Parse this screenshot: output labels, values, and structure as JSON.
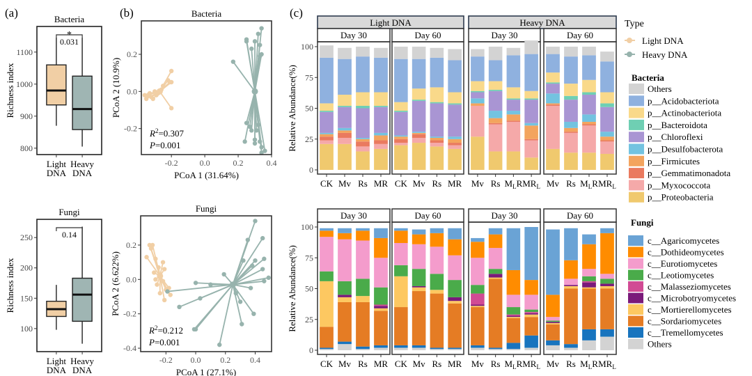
{
  "panel_labels": {
    "a": "(a)",
    "b": "(b)",
    "c": "(c)"
  },
  "chart_data": [
    {
      "id": "a-bacteria",
      "type": "boxplot",
      "title": "Bacteria",
      "ylabel": "Richness index",
      "ylim": [
        780,
        1180
      ],
      "yticks": [
        800,
        900,
        1000,
        1100
      ],
      "categories": [
        "Light DNA",
        "Heavy DNA"
      ],
      "category_lines": [
        [
          "Light",
          "DNA"
        ],
        [
          "Heavy",
          "DNA"
        ]
      ],
      "boxes": [
        {
          "min": 870,
          "q1": 935,
          "median": 980,
          "q3": 1060,
          "max": 1145
        },
        {
          "min": 805,
          "q1": 858,
          "median": 922,
          "q3": 1025,
          "max": 1145
        }
      ],
      "significance": {
        "p_label": "0.031",
        "star": "*"
      }
    },
    {
      "id": "a-fungi",
      "type": "boxplot",
      "title": "Fungi",
      "ylabel": "Richness index",
      "ylim": [
        62,
        280
      ],
      "yticks": [
        100,
        150,
        200,
        250
      ],
      "categories": [
        "Light DNA",
        "Heavy DNA"
      ],
      "category_lines": [
        [
          "Light",
          "DNA"
        ],
        [
          "Heavy",
          "DNA"
        ]
      ],
      "boxes": [
        {
          "min": 98,
          "q1": 120,
          "median": 132,
          "q3": 145,
          "max": 172
        },
        {
          "min": 75,
          "q1": 112,
          "median": 156,
          "q3": 183,
          "max": 268
        }
      ],
      "significance": {
        "p_label": "0.14",
        "star": ""
      }
    },
    {
      "id": "b-bacteria",
      "type": "scatter",
      "title": "Bacteria",
      "xlabel": "PCoA 1 (31.64%)",
      "ylabel": "PCoA 2 (10.9%)",
      "xlim": [
        -0.38,
        0.4
      ],
      "ylim": [
        -0.34,
        0.38
      ],
      "xticks": [
        -0.2,
        0.0,
        0.2,
        0.4
      ],
      "xtick_labels": [
        "-0.2",
        "0.0",
        "0.2",
        "0.4"
      ],
      "yticks": [
        -0.2,
        0.0,
        0.2
      ],
      "ytick_labels": [
        "-0.2",
        "0.0",
        "0.2"
      ],
      "annotation": {
        "r2": "=0.307",
        "p": "=0.001"
      },
      "series": [
        {
          "name": "Light DNA",
          "color": "#f1cfa5",
          "centroid": [
            -0.27,
            0.0
          ],
          "points": [
            [
              -0.2,
              0.11
            ],
            [
              -0.22,
              0.06
            ],
            [
              -0.21,
              0.05
            ],
            [
              -0.2,
              0.05
            ],
            [
              -0.25,
              0.03
            ],
            [
              -0.3,
              0.0
            ],
            [
              -0.33,
              -0.01
            ],
            [
              -0.34,
              -0.02
            ],
            [
              -0.32,
              -0.03
            ],
            [
              -0.29,
              -0.02
            ],
            [
              -0.36,
              -0.02
            ],
            [
              -0.35,
              -0.04
            ],
            [
              -0.31,
              -0.04
            ],
            [
              -0.2,
              -0.09
            ],
            [
              -0.26,
              0.01
            ],
            [
              -0.28,
              -0.01
            ]
          ]
        },
        {
          "name": "Heavy DNA",
          "color": "#97b3ad",
          "centroid": [
            0.3,
            0.0
          ],
          "points": [
            [
              0.17,
              0.16
            ],
            [
              0.25,
              0.28
            ],
            [
              0.25,
              0.27
            ],
            [
              0.3,
              0.27
            ],
            [
              0.32,
              0.31
            ],
            [
              0.34,
              0.34
            ],
            [
              0.33,
              0.25
            ],
            [
              0.28,
              0.23
            ],
            [
              0.34,
              0.2
            ],
            [
              0.33,
              0.19
            ],
            [
              0.25,
              -0.17
            ],
            [
              0.27,
              -0.19
            ],
            [
              0.28,
              -0.21
            ],
            [
              0.31,
              -0.21
            ],
            [
              0.32,
              -0.18
            ],
            [
              0.24,
              -0.27
            ],
            [
              0.3,
              -0.26
            ],
            [
              0.3,
              -0.28
            ],
            [
              0.33,
              -0.27
            ],
            [
              0.34,
              -0.3
            ],
            [
              0.36,
              -0.32
            ],
            [
              0.34,
              -0.33
            ]
          ]
        }
      ]
    },
    {
      "id": "b-fungi",
      "type": "scatter",
      "title": "Fungi",
      "xlabel": "PCoA 1 (27.1%)",
      "ylabel": "PCoA 2 (6.622%)",
      "xlim": [
        -0.37,
        0.51
      ],
      "ylim": [
        -0.42,
        0.37
      ],
      "xticks": [
        -0.2,
        0.0,
        0.2,
        0.4
      ],
      "xtick_labels": [
        "-0.2",
        "0.0",
        "0.2",
        "0.4"
      ],
      "yticks": [
        -0.4,
        -0.2,
        0.0,
        0.2
      ],
      "ytick_labels": [
        "-0.4",
        "-0.2",
        "0.0",
        "0.2"
      ],
      "annotation": {
        "r2": "=0.212",
        "p": "=0.001"
      },
      "series": [
        {
          "name": "Light DNA",
          "color": "#f1cfa5",
          "centroid": [
            -0.24,
            0.02
          ],
          "points": [
            [
              -0.31,
              0.2
            ],
            [
              -0.29,
              0.2
            ],
            [
              -0.3,
              0.18
            ],
            [
              -0.33,
              0.13
            ],
            [
              -0.27,
              0.12
            ],
            [
              -0.22,
              0.1
            ],
            [
              -0.25,
              0.07
            ],
            [
              -0.21,
              0.06
            ],
            [
              -0.28,
              0.04
            ],
            [
              -0.24,
              0.02
            ],
            [
              -0.27,
              0.0
            ],
            [
              -0.22,
              -0.01
            ],
            [
              -0.26,
              -0.03
            ],
            [
              -0.18,
              -0.05
            ],
            [
              -0.2,
              -0.06
            ],
            [
              -0.17,
              -0.09
            ],
            [
              -0.21,
              -0.12
            ],
            [
              -0.24,
              -0.08
            ]
          ]
        },
        {
          "name": "Heavy DNA",
          "color": "#97b3ad",
          "centroid": [
            0.25,
            -0.03
          ],
          "points": [
            [
              0.4,
              0.34
            ],
            [
              0.35,
              0.23
            ],
            [
              0.45,
              0.24
            ],
            [
              0.32,
              0.11
            ],
            [
              0.4,
              0.11
            ],
            [
              0.46,
              0.12
            ],
            [
              0.38,
              0.08
            ],
            [
              0.45,
              0.06
            ],
            [
              0.49,
              0.01
            ],
            [
              0.46,
              -0.01
            ],
            [
              0.37,
              -0.05
            ],
            [
              0.19,
              0.03
            ],
            [
              0.27,
              -0.08
            ],
            [
              0.3,
              -0.13
            ],
            [
              0.39,
              -0.2
            ],
            [
              0.31,
              -0.26
            ],
            [
              0.16,
              -0.38
            ],
            [
              0.0,
              -0.29
            ],
            [
              -0.01,
              -0.29
            ],
            [
              0.03,
              -0.11
            ],
            [
              -0.11,
              -0.16
            ],
            [
              -0.19,
              -0.07
            ],
            [
              0.0,
              -0.02
            ],
            [
              0.1,
              -0.03
            ]
          ]
        }
      ]
    },
    {
      "id": "c-bacteria",
      "type": "stacked_bar",
      "ylabel": "Relative Abundance(%)",
      "ylim": [
        0,
        100
      ],
      "yticks": [
        0,
        25,
        50,
        75,
        100
      ],
      "groups": [
        {
          "label": "Light DNA",
          "days": [
            {
              "label": "Day 30",
              "categories": [
                "CK",
                "Mv",
                "Rs",
                "MR"
              ]
            },
            {
              "label": "Day 60",
              "categories": [
                "CK",
                "Mv",
                "Rs",
                "MR"
              ]
            }
          ]
        },
        {
          "label": "Heavy DNA",
          "days": [
            {
              "label": "Day 30",
              "categories": [
                "Mv",
                "Rs",
                "M_L R",
                "MR_L"
              ]
            },
            {
              "label": "Day 60",
              "categories": [
                "Mv",
                "Rs",
                "M_L R",
                "MR_L"
              ]
            }
          ]
        }
      ],
      "series_order_bottom_to_top": [
        "p__Proteobacteria",
        "p__Myxococcota",
        "p__Gemmatimonadota",
        "p__Firmicutes",
        "p__Desulfobacterota",
        "p__Chloroflexi",
        "p__Bacteroidota",
        "p__Actinobacteriota",
        "p__Acidobacteriota",
        "Others"
      ],
      "colors": {
        "Others": "#d3d3d3",
        "p__Acidobacteriota": "#8fb1df",
        "p__Actinobacteriota": "#f9d98a",
        "p__Bacteroidota": "#6fcfb3",
        "p__Chloroflexi": "#a995d3",
        "p__Desulfobacterota": "#73c3e0",
        "p__Firmicutes": "#f3a45e",
        "p__Gemmatimonadota": "#ea7a5f",
        "p__Myxococcota": "#f5a9a9",
        "p__Proteobacteria": "#f0c96e"
      },
      "bars": [
        [
          21,
          3,
          3,
          2,
          1,
          17,
          1,
          6,
          37,
          10
        ],
        [
          21,
          5,
          4,
          2,
          2,
          17,
          1,
          9,
          29,
          9
        ],
        [
          15,
          4,
          4,
          2,
          1,
          24,
          2,
          11,
          29,
          8
        ],
        [
          17,
          4,
          3,
          4,
          2,
          21,
          1,
          11,
          28,
          8
        ],
        [
          20,
          2,
          3,
          2,
          1,
          19,
          1,
          7,
          35,
          10
        ],
        [
          22,
          4,
          3,
          1,
          1,
          25,
          1,
          9,
          24,
          10
        ],
        [
          19,
          3,
          2,
          2,
          1,
          27,
          1,
          12,
          24,
          8
        ],
        [
          17,
          3,
          2,
          3,
          2,
          26,
          1,
          9,
          26,
          9
        ],
        [
          27,
          25,
          0,
          2,
          4,
          5,
          1,
          8,
          20,
          6
        ],
        [
          15,
          22,
          1,
          4,
          6,
          16,
          1,
          7,
          17,
          11
        ],
        [
          15,
          24,
          1,
          5,
          3,
          9,
          1,
          9,
          26,
          6
        ],
        [
          10,
          14,
          1,
          11,
          2,
          19,
          1,
          6,
          30,
          11
        ],
        [
          17,
          35,
          1,
          1,
          8,
          8,
          1,
          8,
          15,
          6
        ],
        [
          14,
          16,
          1,
          3,
          5,
          18,
          3,
          10,
          22,
          8
        ],
        [
          14,
          22,
          1,
          2,
          6,
          16,
          2,
          10,
          20,
          7
        ],
        [
          13,
          10,
          1,
          3,
          4,
          20,
          3,
          9,
          25,
          8
        ]
      ]
    },
    {
      "id": "c-fungi",
      "type": "stacked_bar",
      "ylabel": "Relative Abundance(%)",
      "ylim": [
        0,
        100
      ],
      "yticks": [
        0,
        25,
        50,
        75,
        100
      ],
      "groups": [
        {
          "label": "",
          "days": [
            {
              "label": "Day 30",
              "categories": [
                "CK",
                "Mv",
                "Rs",
                "MR"
              ]
            },
            {
              "label": "Day 60",
              "categories": [
                "CK",
                "Mv",
                "Rs",
                "MR"
              ]
            }
          ]
        },
        {
          "label": "",
          "days": [
            {
              "label": "Day 30",
              "categories": [
                "Mv",
                "Rs",
                "M_L R",
                "MR_L"
              ]
            },
            {
              "label": "Day 60",
              "categories": [
                "Mv",
                "Rs",
                "M_L R",
                "MR_L"
              ]
            }
          ]
        }
      ],
      "series_order_bottom_to_top": [
        "Others",
        "c__Tremellomycetes",
        "c__Sordariomycetes",
        "c__Mortierellomycetes",
        "c__Microbotryomycetes",
        "c__Malasseziomycetes",
        "c__Leotiomycetes",
        "c__Eurotiomycetes",
        "c__Dothideomycetes",
        "c__Agaricomycetes"
      ],
      "colors": {
        "c__Agaricomycetes": "#6aa3d5",
        "c__Dothideomycetes": "#ff8c00",
        "c__Eurotiomycetes": "#f49ccc",
        "c__Leotiomycetes": "#4aab4a",
        "c__Malasseziomycetes": "#d14b94",
        "c__Microbotryomycetes": "#7a1a7a",
        "c__Mortierellomycetes": "#fdc861",
        "c__Sordariomycetes": "#e57c24",
        "c__Tremellomycetes": "#1874be",
        "Others": "#d3d3d3"
      },
      "bars": [
        [
          1,
          1,
          17,
          37,
          0,
          0,
          8,
          28,
          5,
          2
        ],
        [
          5,
          2,
          32,
          4,
          2,
          0,
          11,
          34,
          5,
          4
        ],
        [
          1,
          2,
          36,
          5,
          0,
          0,
          14,
          31,
          8,
          2
        ],
        [
          2,
          2,
          28,
          2,
          2,
          1,
          14,
          24,
          16,
          8
        ],
        [
          2,
          2,
          31,
          25,
          0,
          0,
          9,
          18,
          10,
          2
        ],
        [
          2,
          2,
          44,
          3,
          1,
          0,
          14,
          20,
          8,
          4
        ],
        [
          1,
          1,
          44,
          3,
          0,
          0,
          13,
          22,
          11,
          4
        ],
        [
          1,
          1,
          36,
          2,
          3,
          0,
          14,
          20,
          13,
          9
        ],
        [
          2,
          2,
          31,
          1,
          1,
          9,
          7,
          22,
          13,
          3
        ],
        [
          1,
          1,
          56,
          1,
          3,
          0,
          4,
          17,
          11,
          5
        ],
        [
          1,
          5,
          20,
          1,
          1,
          1,
          6,
          10,
          20,
          34
        ],
        [
          2,
          10,
          15,
          2,
          1,
          1,
          2,
          12,
          12,
          43
        ],
        [
          4,
          4,
          13,
          1,
          1,
          0,
          1,
          3,
          18,
          53
        ],
        [
          2,
          3,
          45,
          2,
          1,
          0,
          0,
          5,
          15,
          26
        ],
        [
          8,
          9,
          33,
          1,
          4,
          1,
          4,
          6,
          20,
          8
        ],
        [
          11,
          6,
          33,
          2,
          2,
          0,
          4,
          4,
          33,
          4
        ]
      ]
    }
  ],
  "legend_type": {
    "title": "Type",
    "items": [
      {
        "label": "Light DNA",
        "color": "#f1cfa5"
      },
      {
        "label": "Heavy DNA",
        "color": "#97b3ad"
      }
    ]
  },
  "legend_bacteria": {
    "title": "Bacteria",
    "items": [
      "Others",
      "p__Acidobacteriota",
      "p__Actinobacteriota",
      "p__Bacteroidota",
      "p__Chloroflexi",
      "p__Desulfobacterota",
      "p__Firmicutes",
      "p__Gemmatimonadota",
      "p__Myxococcota",
      "p__Proteobacteria"
    ]
  },
  "legend_fungi": {
    "title": "Fungi",
    "items": [
      "c__Agaricomycetes",
      "c__Dothideomycetes",
      "c__Eurotiomycetes",
      "c__Leotiomycetes",
      "c__Malasseziomycetes",
      "c__Microbotryomycetes",
      "c__Mortierellomycetes",
      "c__Sordariomycetes",
      "c__Tremellomycetes",
      "Others"
    ]
  }
}
